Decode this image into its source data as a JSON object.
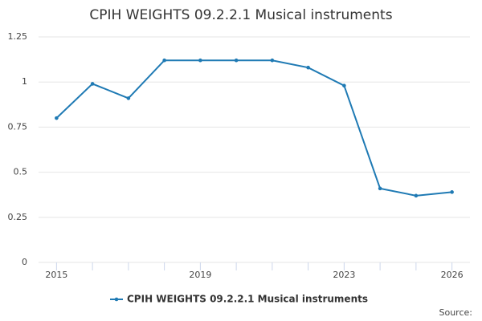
{
  "chart_data": {
    "type": "line",
    "title": "CPIH WEIGHTS 09.2.2.1 Musical instruments",
    "x": [
      2015,
      2016,
      2017,
      2018,
      2019,
      2020,
      2021,
      2022,
      2023,
      2024,
      2025,
      2026
    ],
    "series": [
      {
        "name": "CPIH WEIGHTS 09.2.2.1 Musical instruments",
        "color": "#1f7ab4",
        "values": [
          0.8,
          0.99,
          0.91,
          1.12,
          1.12,
          1.12,
          1.12,
          1.08,
          0.98,
          0.41,
          0.37,
          0.39
        ]
      }
    ],
    "xlim": [
      2014.5,
      2026.5
    ],
    "xticks": [
      2015,
      2019,
      2023,
      2026
    ],
    "ylim": [
      0,
      1.25
    ],
    "yticks": [
      0,
      0.25,
      0.5,
      0.75,
      1,
      1.25
    ],
    "grid": true,
    "legend": "bottom",
    "source": "Source:"
  }
}
